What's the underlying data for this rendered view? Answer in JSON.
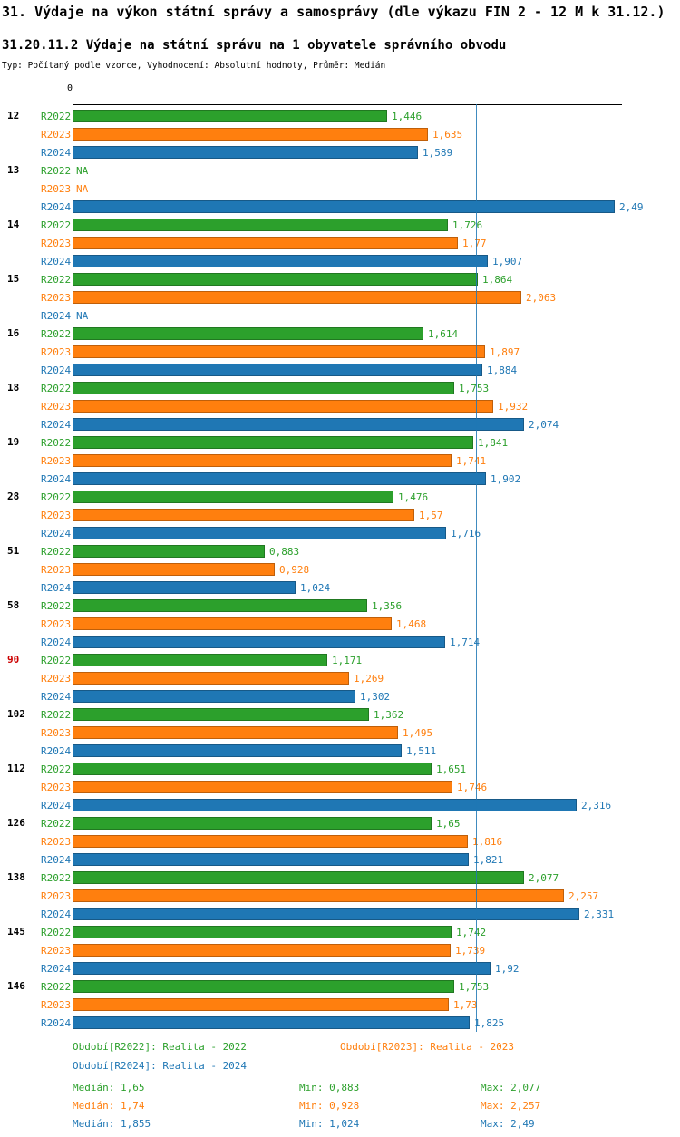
{
  "title": "31. Výdaje na výkon státní správy a samosprávy (dle výkazu FIN 2 - 12 M k 31.12.)",
  "subtitle": "31.20.11.2 Výdaje na státní správu na 1 obyvatele správního obvodu",
  "type_line": "Typ: Počítaný podle vzorce, Vyhodnocení: Absolutní hodnoty, Průměr: Medián",
  "colors": {
    "r2022": "#2ca02c",
    "r2023": "#ff7f0e",
    "r2024": "#1f77b4",
    "highlight_group": "#cc0000",
    "axis": "#000000"
  },
  "chart_data": {
    "type": "bar",
    "orientation": "horizontal",
    "zero_label": "0",
    "xlim": [
      0,
      2.525
    ],
    "grid": false,
    "legend_position": "bottom",
    "series": [
      {
        "name": "R2022",
        "color": "#2ca02c",
        "median": 1.65,
        "min": 0.883,
        "max": 2.077
      },
      {
        "name": "R2023",
        "color": "#ff7f0e",
        "median": 1.74,
        "min": 0.928,
        "max": 2.257
      },
      {
        "name": "R2024",
        "color": "#1f77b4",
        "median": 1.855,
        "min": 1.024,
        "max": 2.49
      }
    ],
    "median_lines": [
      1.65,
      1.74,
      1.855
    ],
    "groups": [
      {
        "label": "12",
        "highlight": false,
        "values": [
          1.446,
          1.635,
          1.589
        ],
        "labels": [
          "1,446",
          "1,635",
          "1,589"
        ]
      },
      {
        "label": "13",
        "highlight": false,
        "values": [
          null,
          null,
          2.49
        ],
        "labels": [
          "NA",
          "NA",
          "2,49"
        ]
      },
      {
        "label": "14",
        "highlight": false,
        "values": [
          1.726,
          1.77,
          1.907
        ],
        "labels": [
          "1,726",
          "1,77",
          "1,907"
        ]
      },
      {
        "label": "15",
        "highlight": false,
        "values": [
          1.864,
          2.063,
          null
        ],
        "labels": [
          "1,864",
          "2,063",
          "NA"
        ]
      },
      {
        "label": "16",
        "highlight": false,
        "values": [
          1.614,
          1.897,
          1.884
        ],
        "labels": [
          "1,614",
          "1,897",
          "1,884"
        ]
      },
      {
        "label": "18",
        "highlight": false,
        "values": [
          1.753,
          1.932,
          2.074
        ],
        "labels": [
          "1,753",
          "1,932",
          "2,074"
        ]
      },
      {
        "label": "19",
        "highlight": false,
        "values": [
          1.841,
          1.741,
          1.902
        ],
        "labels": [
          "1,841",
          "1,741",
          "1,902"
        ]
      },
      {
        "label": "28",
        "highlight": false,
        "values": [
          1.476,
          1.57,
          1.716
        ],
        "labels": [
          "1,476",
          "1,57",
          "1,716"
        ]
      },
      {
        "label": "51",
        "highlight": false,
        "values": [
          0.883,
          0.928,
          1.024
        ],
        "labels": [
          "0,883",
          "0,928",
          "1,024"
        ]
      },
      {
        "label": "58",
        "highlight": false,
        "values": [
          1.356,
          1.468,
          1.714
        ],
        "labels": [
          "1,356",
          "1,468",
          "1,714"
        ]
      },
      {
        "label": "90",
        "highlight": true,
        "values": [
          1.171,
          1.269,
          1.302
        ],
        "labels": [
          "1,171",
          "1,269",
          "1,302"
        ]
      },
      {
        "label": "102",
        "highlight": false,
        "values": [
          1.362,
          1.495,
          1.511
        ],
        "labels": [
          "1,362",
          "1,495",
          "1,511"
        ]
      },
      {
        "label": "112",
        "highlight": false,
        "values": [
          1.651,
          1.746,
          2.316
        ],
        "labels": [
          "1,651",
          "1,746",
          "2,316"
        ]
      },
      {
        "label": "126",
        "highlight": false,
        "values": [
          1.65,
          1.816,
          1.821
        ],
        "labels": [
          "1,65",
          "1,816",
          "1,821"
        ]
      },
      {
        "label": "138",
        "highlight": false,
        "values": [
          2.077,
          2.257,
          2.331
        ],
        "labels": [
          "2,077",
          "2,257",
          "2,331"
        ]
      },
      {
        "label": "145",
        "highlight": false,
        "values": [
          1.742,
          1.739,
          1.92
        ],
        "labels": [
          "1,742",
          "1,739",
          "1,92"
        ]
      },
      {
        "label": "146",
        "highlight": false,
        "values": [
          1.753,
          1.73,
          1.825
        ],
        "labels": [
          "1,753",
          "1,73",
          "1,825"
        ]
      }
    ]
  },
  "legend": {
    "rows": [
      [
        {
          "text": "Období[R2022]: Realita - 2022",
          "series": 0
        },
        {
          "text": "Období[R2023]: Realita - 2023",
          "series": 1
        }
      ],
      [
        {
          "text": "Období[R2024]: Realita - 2024",
          "series": 2
        }
      ]
    ]
  },
  "stats": [
    {
      "series": 0,
      "median": "Medián: 1,65",
      "min": "Min: 0,883",
      "max": "Max: 2,077"
    },
    {
      "series": 1,
      "median": "Medián: 1,74",
      "min": "Min: 0,928",
      "max": "Max: 2,257"
    },
    {
      "series": 2,
      "median": "Medián: 1,855",
      "min": "Min: 1,024",
      "max": "Max: 2,49"
    }
  ]
}
